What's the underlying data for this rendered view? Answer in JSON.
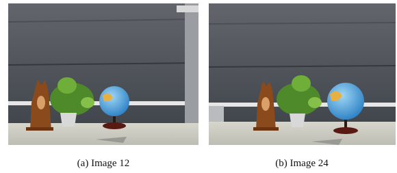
{
  "figure": {
    "subfigures": [
      {
        "caption": "(a) Image 12"
      },
      {
        "caption": "(b) Image 24"
      }
    ]
  }
}
